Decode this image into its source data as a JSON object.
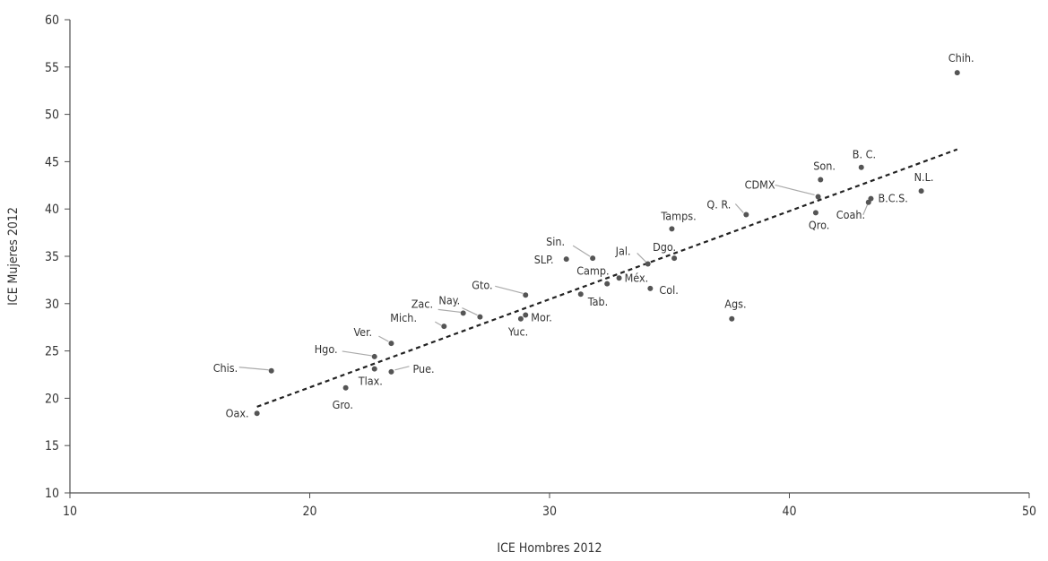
{
  "chart_data": {
    "type": "scatter",
    "xlabel": "ICE Hombres 2012",
    "ylabel": "ICE Mujeres 2012",
    "xlim": [
      10,
      50
    ],
    "ylim": [
      10,
      60
    ],
    "xticks": [
      10,
      20,
      30,
      40,
      50
    ],
    "yticks": [
      10,
      15,
      20,
      25,
      30,
      35,
      40,
      45,
      50,
      55,
      60
    ],
    "grid": false,
    "trendline": {
      "style": "dashed",
      "from": [
        17.8,
        19.1
      ],
      "to": [
        47.0,
        46.3
      ]
    },
    "points": [
      {
        "label": "Chih.",
        "x": 47.0,
        "y": 54.4
      },
      {
        "label": "B. C.",
        "x": 43.0,
        "y": 44.4
      },
      {
        "label": "Son.",
        "x": 41.3,
        "y": 43.1
      },
      {
        "label": "CDMX",
        "x": 41.2,
        "y": 41.3
      },
      {
        "label": "N.L.",
        "x": 45.5,
        "y": 41.9
      },
      {
        "label": "B.C.S.",
        "x": 43.4,
        "y": 41.1
      },
      {
        "label": "Coah.",
        "x": 43.3,
        "y": 40.7
      },
      {
        "label": "Q. R.",
        "x": 38.2,
        "y": 39.4
      },
      {
        "label": "Qro.",
        "x": 41.1,
        "y": 39.6
      },
      {
        "label": "Tamps.",
        "x": 35.1,
        "y": 37.9
      },
      {
        "label": "Sin.",
        "x": 31.8,
        "y": 34.8
      },
      {
        "label": "SLP.",
        "x": 30.7,
        "y": 34.7
      },
      {
        "label": "Jal.",
        "x": 34.1,
        "y": 34.2
      },
      {
        "label": "Dgo.",
        "x": 35.2,
        "y": 34.8
      },
      {
        "label": "Camp.",
        "x": 32.4,
        "y": 32.1
      },
      {
        "label": "Méx.",
        "x": 32.9,
        "y": 32.7
      },
      {
        "label": "Col.",
        "x": 34.2,
        "y": 31.6
      },
      {
        "label": "Tab.",
        "x": 31.3,
        "y": 31.0
      },
      {
        "label": "Gto.",
        "x": 29.0,
        "y": 30.9
      },
      {
        "label": "Nay.",
        "x": 27.1,
        "y": 28.6
      },
      {
        "label": "Zac.",
        "x": 26.4,
        "y": 29.0
      },
      {
        "label": "Mor.",
        "x": 29.0,
        "y": 28.8
      },
      {
        "label": "Yuc.",
        "x": 28.8,
        "y": 28.4
      },
      {
        "label": "Mich.",
        "x": 25.6,
        "y": 27.6
      },
      {
        "label": "Ags.",
        "x": 37.6,
        "y": 28.4
      },
      {
        "label": "Ver.",
        "x": 23.4,
        "y": 25.8
      },
      {
        "label": "Hgo.",
        "x": 22.7,
        "y": 24.4
      },
      {
        "label": "Chis.",
        "x": 18.4,
        "y": 22.9
      },
      {
        "label": "Pue.",
        "x": 23.4,
        "y": 22.8
      },
      {
        "label": "Tlax.",
        "x": 22.7,
        "y": 23.1
      },
      {
        "label": "Gro.",
        "x": 21.5,
        "y": 21.1
      },
      {
        "label": "Oax.",
        "x": 17.8,
        "y": 18.4
      }
    ]
  }
}
